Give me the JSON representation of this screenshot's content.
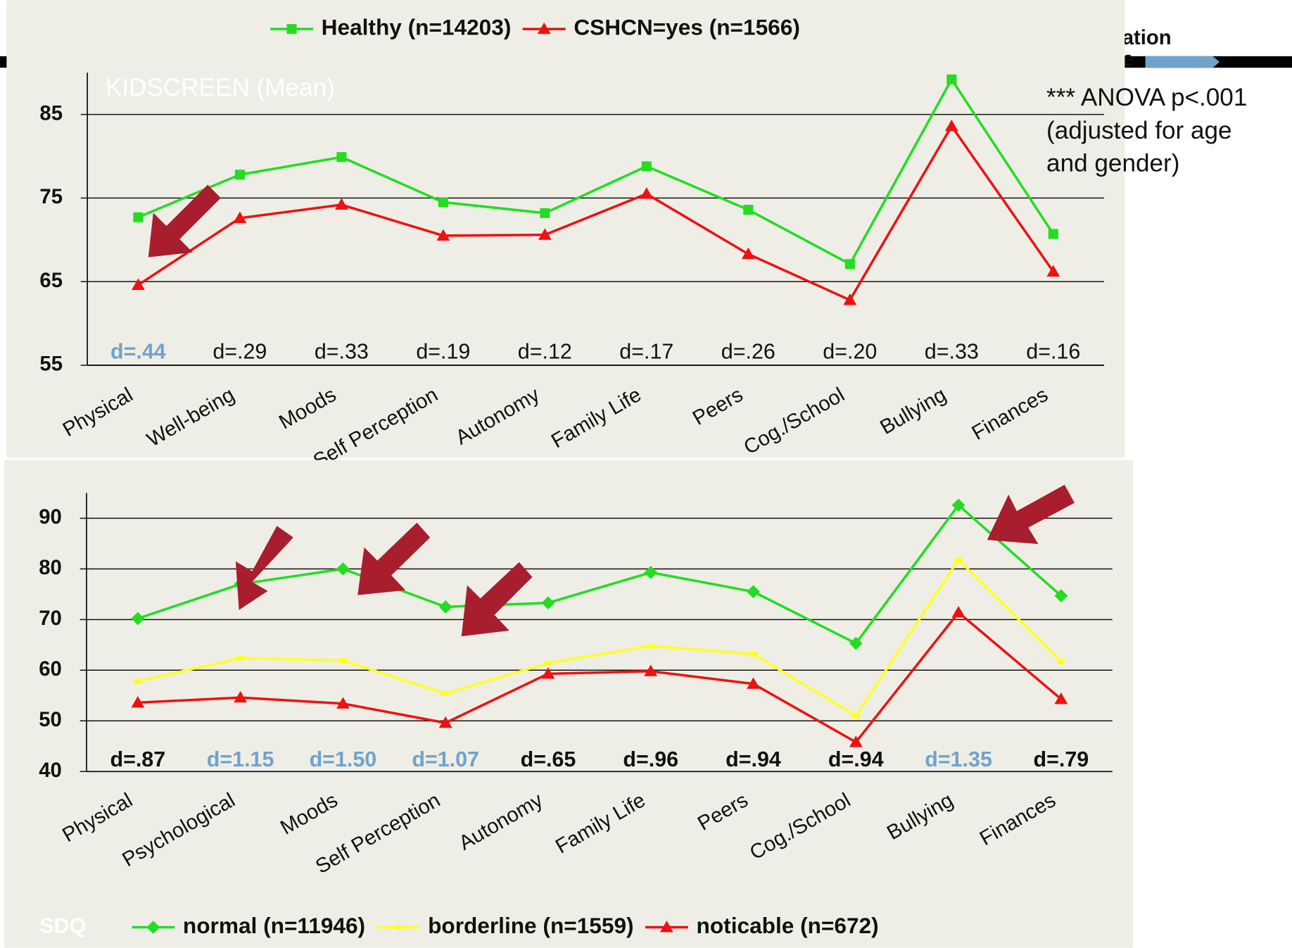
{
  "chart_data": [
    {
      "type": "line",
      "title": "KIDSCREEN (Mean)",
      "categories": [
        "Physical",
        "Well-being",
        "Moods",
        "Self Perception",
        "Autonomy",
        "Family Life",
        "Peers",
        "Cog./School",
        "Bullying",
        "Finances"
      ],
      "series": [
        {
          "name": "Healthy (n=14203)",
          "color": "#22dd22",
          "marker": "square",
          "values": [
            72.7,
            77.8,
            79.9,
            74.5,
            73.2,
            78.8,
            73.6,
            67.1,
            89.2,
            70.7
          ]
        },
        {
          "name": "CSHCN=yes (n=1566)",
          "color": "#ee1111",
          "marker": "triangle",
          "values": [
            64.6,
            72.6,
            74.2,
            70.5,
            70.6,
            75.5,
            68.3,
            62.8,
            83.6,
            66.2
          ]
        }
      ],
      "annotations": [
        "d=.44",
        "d=.29",
        "d=.33",
        "d=.19",
        "d=.12",
        "d=.17",
        "d=.26",
        "d=.20",
        "d=.33",
        "d=.16"
      ],
      "annotation_colors": [
        "#6fa3cc",
        "#111111",
        "#111111",
        "#111111",
        "#111111",
        "#111111",
        "#111111",
        "#111111",
        "#111111",
        "#111111"
      ],
      "ylim": [
        55,
        90
      ],
      "yticks": [
        55,
        65,
        75,
        85
      ],
      "grid": true,
      "legend": "top"
    },
    {
      "type": "line",
      "title": "SDQ",
      "categories": [
        "Physical",
        "Psychological",
        "Moods",
        "Self Perception",
        "Autonomy",
        "Family Life",
        "Peers",
        "Cog./School",
        "Bullying",
        "Finances"
      ],
      "series": [
        {
          "name": "normal (n=11946)",
          "color": "#22dd22",
          "marker": "diamond",
          "values": [
            70.2,
            77,
            80,
            72.5,
            73.3,
            79.3,
            75.5,
            65.3,
            92.6,
            74.7
          ]
        },
        {
          "name": "borderline (n=1559)",
          "color": "#ffff22",
          "marker": "dash",
          "values": [
            57.8,
            62.4,
            61.9,
            55.4,
            61.4,
            64.8,
            63.2,
            51,
            81.8,
            61.7
          ]
        },
        {
          "name": "noticable (n=672)",
          "color": "#ee1111",
          "marker": "triangle",
          "values": [
            53.6,
            54.6,
            53.4,
            49.6,
            59.3,
            59.8,
            57.3,
            45.8,
            71.4,
            54.3
          ]
        }
      ],
      "annotations": [
        "d=.87",
        "d=1.15",
        "d=1.50",
        "d=1.07",
        "d=.65",
        "d=.96",
        "d=.94",
        "d=.94",
        "d=1.35",
        "d=.79"
      ],
      "annotation_colors": [
        "#111111",
        "#6fa3cc",
        "#6fa3cc",
        "#6fa3cc",
        "#111111",
        "#111111",
        "#111111",
        "#111111",
        "#6fa3cc",
        "#111111"
      ],
      "ylim": [
        40,
        95
      ],
      "yticks": [
        40,
        50,
        60,
        70,
        80,
        90
      ],
      "grid": true,
      "legend": "bottom"
    }
  ],
  "side_note": {
    "lines": [
      "*** ANOVA p<.001",
      "(adjusted for age",
      "and gender)"
    ]
  },
  "header_fragment": {
    "lines": [
      "ation",
      "e"
    ]
  }
}
